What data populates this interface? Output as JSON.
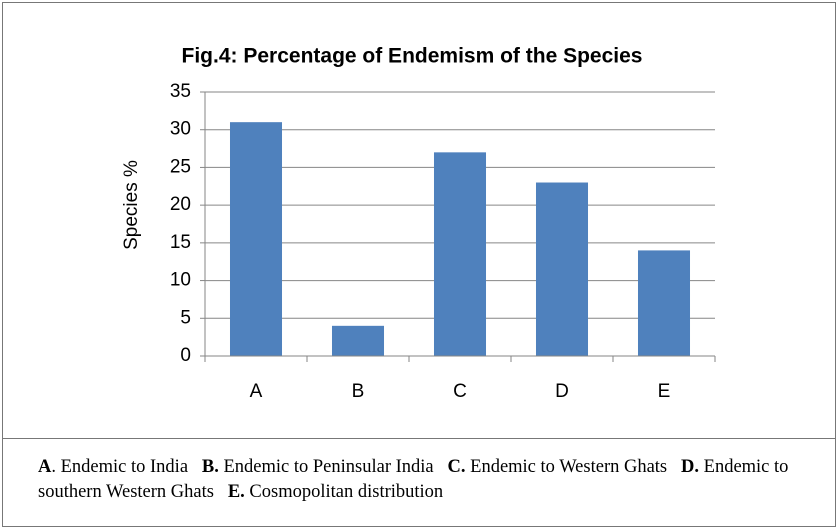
{
  "chart_data": {
    "type": "bar",
    "title": "Fig.4:  Percentage of Endemism of the  Species",
    "y_label": "Species %",
    "categories": [
      "A",
      "B",
      "C",
      "D",
      "E"
    ],
    "values": [
      31,
      4,
      27,
      23,
      14
    ],
    "color": "#4f81bd",
    "ylim": [
      0,
      35
    ],
    "yticks": [
      0,
      5,
      10,
      15,
      20,
      25,
      30,
      35
    ],
    "grid": true
  },
  "caption": {
    "items": [
      {
        "key": "A",
        "text": ". Endemic to India"
      },
      {
        "key": "B.",
        "text": " Endemic to Peninsular India"
      },
      {
        "key": "C.",
        "text": " Endemic to Western Ghats"
      },
      {
        "key": "D.",
        "text": " Endemic to southern Western Ghats"
      },
      {
        "key": "E.",
        "text": " Cosmopolitan distribution"
      }
    ]
  }
}
